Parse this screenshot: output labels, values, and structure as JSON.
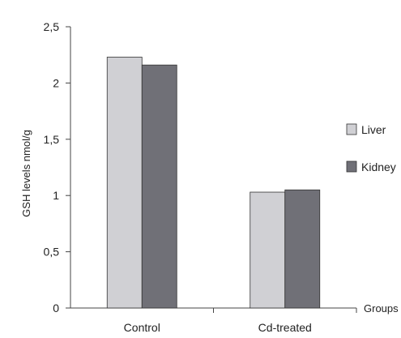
{
  "chart_data": {
    "type": "bar",
    "categories": [
      "Control",
      "Cd-treated"
    ],
    "series": [
      {
        "name": "Liver",
        "values": [
          2.23,
          1.03
        ],
        "color": "#d0d0d4"
      },
      {
        "name": "Kidney",
        "values": [
          2.16,
          1.05
        ],
        "color": "#707077"
      }
    ],
    "title": "",
    "xlabel": "Groups",
    "ylabel": "GSH levels nmol/g",
    "ylim": [
      0,
      2.5
    ],
    "yticks": [
      0,
      0.5,
      1,
      1.5,
      2,
      2.5
    ],
    "ytick_labels": [
      "0",
      "0,5",
      "1",
      "1,5",
      "2",
      "2,5"
    ],
    "grid": false,
    "legend_position": "right"
  }
}
